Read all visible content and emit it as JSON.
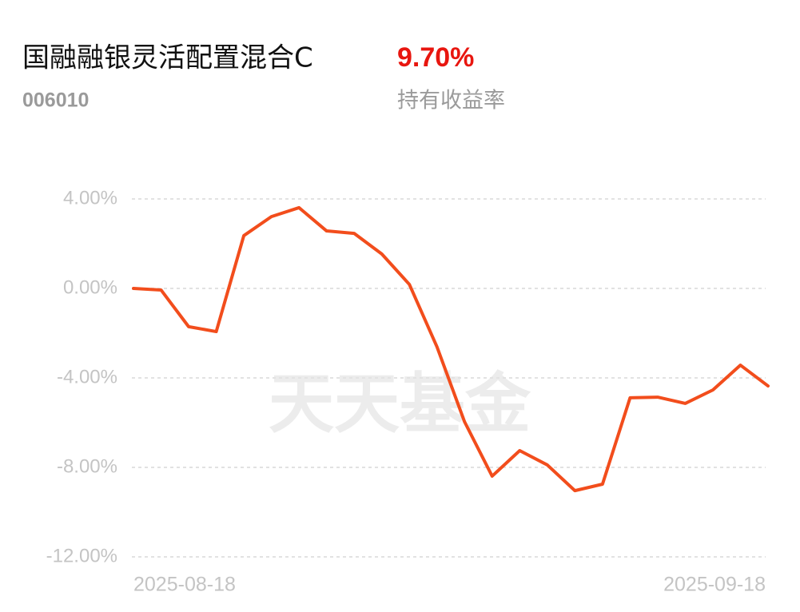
{
  "chart_data": {
    "type": "line",
    "title": "国融融银灵活配置混合C",
    "fund_code": "006010",
    "return_value": "9.70%",
    "return_label": "持有收益率",
    "watermark": "天天基金",
    "categories": [
      "2025-08-18",
      null,
      null,
      null,
      null,
      null,
      null,
      null,
      null,
      null,
      null,
      null,
      null,
      null,
      null,
      null,
      null,
      null,
      null,
      null,
      null,
      null,
      null,
      "2025-09-18"
    ],
    "series": [
      {
        "name": "持有收益率",
        "color": "#f24d1c",
        "values": [
          0.0,
          -0.07,
          -1.71,
          -1.93,
          2.36,
          3.21,
          3.61,
          2.57,
          2.46,
          1.54,
          0.18,
          -2.61,
          -5.96,
          -8.39,
          -7.25,
          -7.89,
          -9.04,
          -8.75,
          -4.89,
          -4.86,
          -5.14,
          -4.54,
          -3.43,
          -4.36
        ]
      }
    ],
    "ylim": [
      -12,
      4
    ],
    "yticks": [
      {
        "value": 4,
        "label": "4.00%"
      },
      {
        "value": 0,
        "label": "0.00%"
      },
      {
        "value": -4,
        "label": "-4.00%"
      },
      {
        "value": -8,
        "label": "-8.00%"
      },
      {
        "value": -12,
        "label": "-12.00%"
      }
    ],
    "grid": true
  }
}
